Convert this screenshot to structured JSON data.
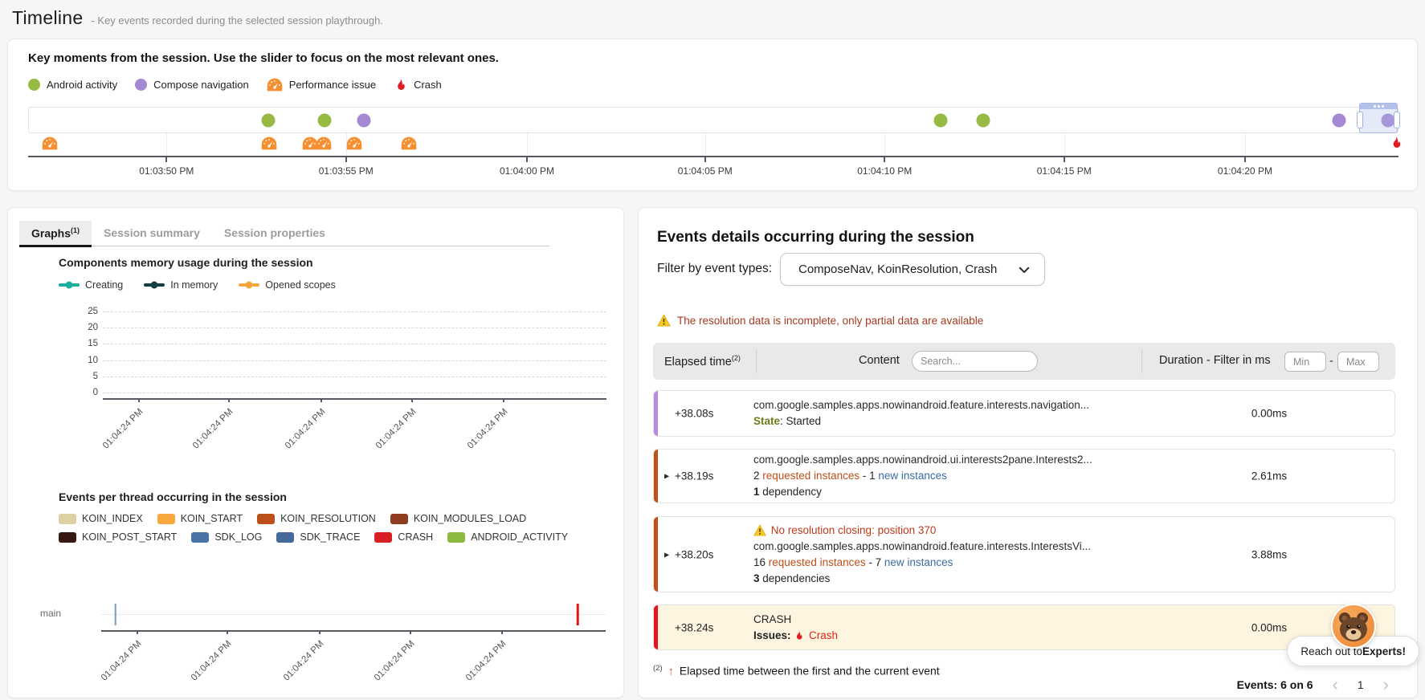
{
  "page": {
    "title": "Timeline",
    "subtitle": "- Key events recorded during the selected session playthrough."
  },
  "colors": {
    "android_activity": "#96ba44",
    "compose_navigation": "#a588d3",
    "performance_issue": "#f68f30",
    "crash": "#e01b22",
    "accent_purple": "#b98ae0",
    "accent_rust": "#bf4f17",
    "accent_red": "#e4131c",
    "link_blue": "#3c6ca6",
    "rust_text": "#bf4f17",
    "olive": "#6e7b18",
    "warning_text": "#a63a21"
  },
  "key_moments": {
    "heading": "Key moments from the session. Use the slider to focus on the most relevant ones.",
    "legend": [
      {
        "label": "Android activity",
        "color": "#96ba44",
        "icon": "dot"
      },
      {
        "label": "Compose navigation",
        "color": "#a588d3",
        "icon": "dot"
      },
      {
        "label": "Performance issue",
        "color": "#f68f30",
        "icon": "gauge"
      },
      {
        "label": "Crash",
        "color": "#e01b22",
        "icon": "flame"
      }
    ]
  },
  "tabs": [
    {
      "label": "Graphs",
      "sup": "(1)",
      "active": true
    },
    {
      "label": "Session summary",
      "active": false
    },
    {
      "label": "Session properties",
      "active": false
    }
  ],
  "chart_data": [
    {
      "id": "key-moments-timeline",
      "type": "scatter",
      "x_tick_labels": [
        "01:03:50 PM",
        "01:03:55 PM",
        "01:04:00 PM",
        "01:04:05 PM",
        "01:04:10 PM",
        "01:04:15 PM",
        "01:04:20 PM"
      ],
      "tick_pcts": [
        10.1,
        23.2,
        36.4,
        49.4,
        62.5,
        75.6,
        88.8
      ],
      "events": [
        {
          "type": "android_activity",
          "pct": 17.5,
          "time": "01:03:52 PM"
        },
        {
          "type": "android_activity",
          "pct": 21.6,
          "time": "01:03:54 PM"
        },
        {
          "type": "compose_navigation",
          "pct": 24.5,
          "time": "01:03:55 PM"
        },
        {
          "type": "android_activity",
          "pct": 66.6,
          "time": "01:04:11 PM"
        },
        {
          "type": "android_activity",
          "pct": 69.7,
          "time": "01:04:13 PM"
        },
        {
          "type": "compose_navigation",
          "pct": 95.7,
          "time": "01:04:22 PM"
        },
        {
          "type": "compose_navigation",
          "pct": 99.3,
          "time": "01:04:24 PM"
        }
      ],
      "issues": [
        {
          "type": "performance_issue",
          "pct": 1.6
        },
        {
          "type": "performance_issue",
          "pct": 17.6
        },
        {
          "type": "performance_issue",
          "pct": 20.6
        },
        {
          "type": "performance_issue",
          "pct": 21.6
        },
        {
          "type": "performance_issue",
          "pct": 23.8
        },
        {
          "type": "performance_issue",
          "pct": 27.8
        },
        {
          "type": "crash",
          "pct": 99.8
        }
      ],
      "selection": {
        "start_pct": 97.2,
        "end_pct": 100
      }
    },
    {
      "id": "memory-usage",
      "type": "line",
      "title": "Components memory usage during the session",
      "series": [
        {
          "name": "Creating",
          "color": "#1aaf9c",
          "values": []
        },
        {
          "name": "In memory",
          "color": "#123f46",
          "values": []
        },
        {
          "name": "Opened scopes",
          "color": "#f7a73e",
          "values": []
        }
      ],
      "ylim": [
        0,
        25
      ],
      "yticks": [
        25,
        20,
        15,
        10,
        5,
        0
      ],
      "xticks": [
        "01:04:24 PM",
        "01:04:24 PM",
        "01:04:24 PM",
        "01:04:24 PM",
        "01:04:24 PM"
      ],
      "grid": "dashed horizontal"
    },
    {
      "id": "events-per-thread",
      "type": "timeline",
      "title": "Events per thread occurring in the session",
      "threads": [
        "main"
      ],
      "legend": [
        {
          "name": "KOIN_INDEX",
          "color": "#ddd1a3"
        },
        {
          "name": "KOIN_START",
          "color": "#f8a83e"
        },
        {
          "name": "KOIN_RESOLUTION",
          "color": "#bd4f1b"
        },
        {
          "name": "KOIN_MODULES_LOAD",
          "color": "#8f3d1e"
        },
        {
          "name": "KOIN_POST_START",
          "color": "#391712"
        },
        {
          "name": "SDK_LOG",
          "color": "#4874a5"
        },
        {
          "name": "SDK_TRACE",
          "color": "#44699b"
        },
        {
          "name": "CRASH",
          "color": "#d91f26"
        },
        {
          "name": "ANDROID_ACTIVITY",
          "color": "#8cba3f"
        }
      ],
      "xticks": [
        "01:04:24 PM",
        "01:04:24 PM",
        "01:04:24 PM",
        "01:04:24 PM",
        "01:04:24 PM"
      ],
      "events": [
        {
          "thread": "main",
          "type": "SDK_LOG",
          "pct": 2.8,
          "color": "#7e9cc0"
        },
        {
          "thread": "main",
          "type": "CRASH",
          "pct": 94.5,
          "color": "#e0161f"
        }
      ]
    }
  ],
  "events_panel": {
    "title": "Events details occurring during the session",
    "filter_label": "Filter by event types:",
    "filter_value": "ComposeNav, KoinResolution, Crash",
    "warning": "The resolution data is incomplete, only partial data are available",
    "header": {
      "elapsed": "Elapsed time",
      "elapsed_sup": "(2)",
      "content": "Content",
      "search_placeholder": "Search...",
      "duration": "Duration - Filter in ms",
      "min_placeholder": "Min",
      "max_placeholder": "Max"
    },
    "rows": [
      {
        "accent": "#b98ae0",
        "elapsed": "+38.08s",
        "expandable": false,
        "highlight": false,
        "duration": "0.00ms",
        "lines": [
          [
            {
              "t": "com.google.samples.apps.nowinandroid.feature.interests.navigation...",
              "c": "title"
            }
          ],
          [
            {
              "t": "State",
              "c": "olive-bold"
            },
            {
              "t": ": Started",
              "c": "plain"
            }
          ]
        ]
      },
      {
        "accent": "#bf4f17",
        "elapsed": "+38.19s",
        "expandable": true,
        "highlight": false,
        "duration": "2.61ms",
        "lines": [
          [
            {
              "t": "com.google.samples.apps.nowinandroid.ui.interests2pane.Interests2...",
              "c": "title"
            }
          ],
          [
            {
              "t": "2 ",
              "c": "plain"
            },
            {
              "t": "requested instances",
              "c": "rust"
            },
            {
              "t": " - 1 ",
              "c": "plain"
            },
            {
              "t": "new instances",
              "c": "blue"
            }
          ],
          [
            {
              "t": "1",
              "c": "bold"
            },
            {
              "t": " dependency",
              "c": "plain"
            }
          ]
        ]
      },
      {
        "accent": "#bf4f17",
        "elapsed": "+38.20s",
        "expandable": true,
        "highlight": false,
        "duration": "3.88ms",
        "lines": [
          [
            {
              "t": "",
              "c": "warn-icon"
            },
            {
              "t": " No resolution closing: position 370",
              "c": "warn"
            }
          ],
          [
            {
              "t": "com.google.samples.apps.nowinandroid.feature.interests.InterestsVi...",
              "c": "title"
            }
          ],
          [
            {
              "t": "16 ",
              "c": "plain"
            },
            {
              "t": "requested instances",
              "c": "rust"
            },
            {
              "t": " - 7 ",
              "c": "plain"
            },
            {
              "t": "new instances",
              "c": "blue"
            }
          ],
          [
            {
              "t": "3",
              "c": "bold"
            },
            {
              "t": " dependencies",
              "c": "plain"
            }
          ]
        ]
      },
      {
        "accent": "#e4131c",
        "elapsed": "+38.24s",
        "expandable": false,
        "highlight": true,
        "duration": "0.00ms",
        "lines": [
          [
            {
              "t": "CRASH",
              "c": "plain"
            }
          ],
          [
            {
              "t": "Issues: ",
              "c": "bold"
            },
            {
              "t": "",
              "c": "flame-icon"
            },
            {
              "t": " Crash",
              "c": "red"
            }
          ]
        ]
      }
    ],
    "footnote": {
      "sup": "(2)",
      "arrow": "↑",
      "text": "Elapsed time between the first and the current event"
    },
    "pagination": {
      "count_label": "Events: 6 on 6",
      "prev": "‹",
      "page": "1",
      "next": "›"
    }
  },
  "expert": {
    "label_prefix": "Reach out to ",
    "label_bold": "Experts!"
  }
}
